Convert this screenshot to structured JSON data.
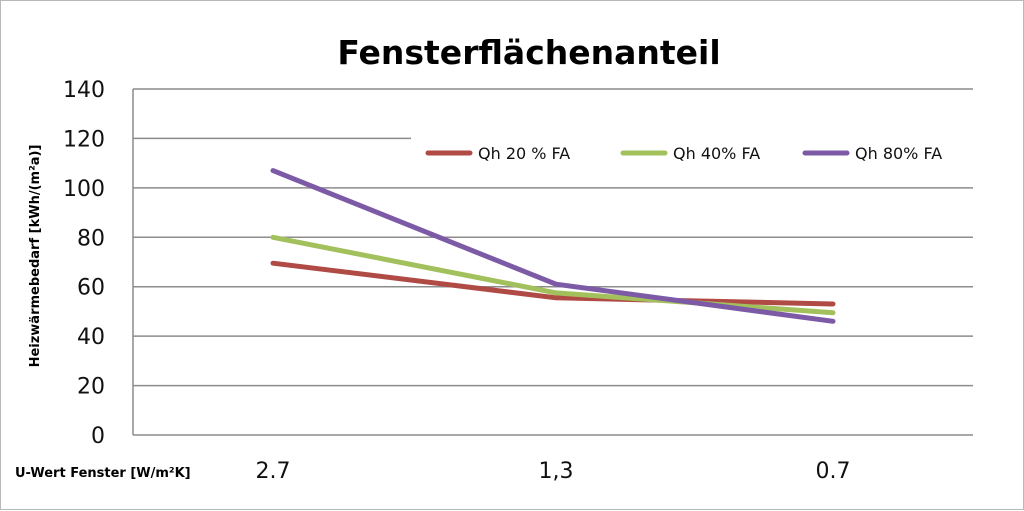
{
  "chart_data": {
    "type": "line",
    "title": "Fensterflächenanteil",
    "xlabel": "U-Wert Fenster [W/m²K]",
    "ylabel": "Heizwärmebedarf [kWh/(m²a)]",
    "categories": [
      "2.7",
      "1,3",
      "0.7"
    ],
    "ylim": [
      0,
      140
    ],
    "yticks": [
      0,
      20,
      40,
      60,
      80,
      100,
      120,
      140
    ],
    "grid": true,
    "legend_position": "top-right",
    "series": [
      {
        "name": "Qh 20 %  FA",
        "values": [
          69.5,
          55.5,
          53
        ],
        "color": "#b04a45"
      },
      {
        "name": "Qh 40% FA",
        "values": [
          80,
          57.5,
          49.5
        ],
        "color": "#a2c15c"
      },
      {
        "name": "Qh 80% FA",
        "values": [
          107,
          61,
          46
        ],
        "color": "#7c5aa6"
      }
    ]
  }
}
